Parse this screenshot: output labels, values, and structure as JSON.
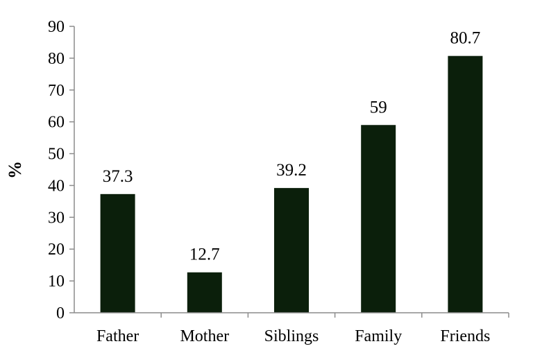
{
  "chart_data": {
    "type": "bar",
    "categories": [
      "Father",
      "Mother",
      "Siblings",
      "Family",
      "Friends"
    ],
    "values": [
      37.3,
      12.7,
      39.2,
      59,
      80.7
    ],
    "data_labels": [
      "37.3",
      "12.7",
      "39.2",
      "59",
      "80.7"
    ],
    "title": "",
    "xlabel": "",
    "ylabel": "%",
    "ylim": [
      0,
      90
    ],
    "yticks": [
      0,
      10,
      20,
      30,
      40,
      50,
      60,
      70,
      80,
      90
    ],
    "grid": false,
    "legend": "none",
    "bar_color": "#0b1f0b"
  }
}
